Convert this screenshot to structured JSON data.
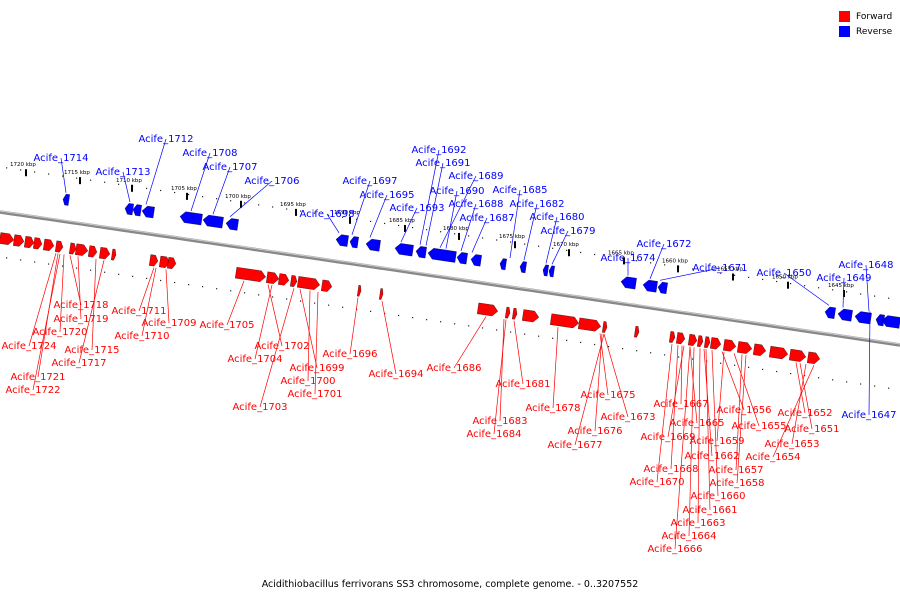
{
  "colors": {
    "forward": "#ff0000",
    "reverse": "#0000ff",
    "backbone": "#777777"
  },
  "legend": [
    {
      "label": "Forward",
      "color": "#ff0000"
    },
    {
      "label": "Reverse",
      "color": "#0000ff"
    }
  ],
  "caption": "Acidithiobacillus ferrivorans SS3 chromosome, complete genome. - 0..3207552",
  "ticks": [
    "1720 kbp",
    "1715 kbp",
    "1710 kbp",
    "1705 kbp",
    "1700 kbp",
    "1695 kbp",
    "1690 kbp",
    "1685 kbp",
    "1680 kbp",
    "1675 kbp",
    "1670 kbp",
    "1665 kbp",
    "1660 kbp",
    "1655 kbp",
    "1650 kbp",
    "1645 kbp"
  ],
  "genes_reverse": [
    "Acife_1714",
    "Acife_1713",
    "Acife_1712",
    "Acife_1708",
    "Acife_1707",
    "Acife_1706",
    "Acife_1698",
    "Acife_1697",
    "Acife_1695",
    "Acife_1693",
    "Acife_1692",
    "Acife_1691",
    "Acife_1689",
    "Acife_1690",
    "Acife_1688",
    "Acife_1687",
    "Acife_1685",
    "Acife_1682",
    "Acife_1680",
    "Acife_1679",
    "Acife_1674",
    "Acife_1672",
    "Acife_1671",
    "Acife_1650",
    "Acife_1649",
    "Acife_1648",
    "Acife_1647"
  ],
  "genes_forward": [
    "Acife_1718",
    "Acife_1719",
    "Acife_1720",
    "Acife_1724",
    "Acife_1721",
    "Acife_1722",
    "Acife_1715",
    "Acife_1717",
    "Acife_1711",
    "Acife_1710",
    "Acife_1709",
    "Acife_1705",
    "Acife_1702",
    "Acife_1704",
    "Acife_1699",
    "Acife_1700",
    "Acife_1701",
    "Acife_1703",
    "Acife_1696",
    "Acife_1694",
    "Acife_1686",
    "Acife_1681",
    "Acife_1683",
    "Acife_1684",
    "Acife_1678",
    "Acife_1675",
    "Acife_1676",
    "Acife_1677",
    "Acife_1673",
    "Acife_1667",
    "Acife_1669",
    "Acife_1665",
    "Acife_1656",
    "Acife_1655",
    "Acife_1659",
    "Acife_1652",
    "Acife_1651",
    "Acife_1653",
    "Acife_1654",
    "Acife_1662",
    "Acife_1657",
    "Acife_1668",
    "Acife_1658",
    "Acife_1670",
    "Acife_1660",
    "Acife_1661",
    "Acife_1663",
    "Acife_1664",
    "Acife_1666"
  ]
}
